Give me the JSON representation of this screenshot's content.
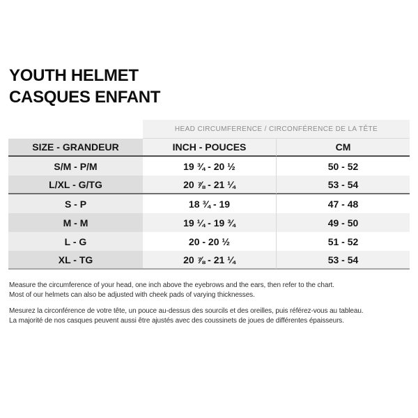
{
  "header": {
    "title_en": "YOUTH HELMET",
    "title_fr": "CASQUES ENFANT"
  },
  "table": {
    "span_header": "HEAD CIRCUMFERENCE / CIRCONFÉRENCE DE LA TÊTE",
    "columns": {
      "size": "SIZE - GRANDEUR",
      "inch": "INCH - POUCES",
      "cm": "CM"
    },
    "rows": [
      {
        "size": "S/M - P/M",
        "inch": "19 ¾ - 20 ½",
        "cm": "50 - 52",
        "group_end": false
      },
      {
        "size": "L/XL - G/TG",
        "inch": "20 ⅞ - 21 ¼",
        "cm": "53 - 54",
        "group_end": true
      },
      {
        "size": "S - P",
        "inch": "18 ¾ - 19",
        "cm": "47 - 48",
        "group_end": false
      },
      {
        "size": "M - M",
        "inch": "19 ¼ - 19 ¾",
        "cm": "49 - 50",
        "group_end": false
      },
      {
        "size": "L - G",
        "inch": "20 - 20 ½",
        "cm": "51 - 52",
        "group_end": false
      },
      {
        "size": "XL - TG",
        "inch": "20 ⅞ - 21 ¼",
        "cm": "53 - 54",
        "group_end": false
      }
    ]
  },
  "notes": {
    "en": [
      "Measure the circumference of your head, one inch above the eyebrows and the ears, then refer to the chart.",
      "Most of our helmets can also be adjusted with cheek pads of varying thicknesses."
    ],
    "fr": [
      "Mesurez la circonférence de votre tête, un pouce au-dessus des sourcils et des oreilles, puis référez-vous au tableau.",
      "La majorité de nos casques peuvent aussi être ajustés avec des coussinets de joues de différentes épaisseurs."
    ]
  },
  "colors": {
    "header_underline": "#4d4d4d",
    "group_separator": "#6e6e6e",
    "table_bottom_border": "#a6a6a6",
    "stripe_light": "#f1f1f1",
    "size_column_light": "#ececec",
    "size_column_dark": "#dddddd",
    "muted_text": "#8c8c8c"
  }
}
